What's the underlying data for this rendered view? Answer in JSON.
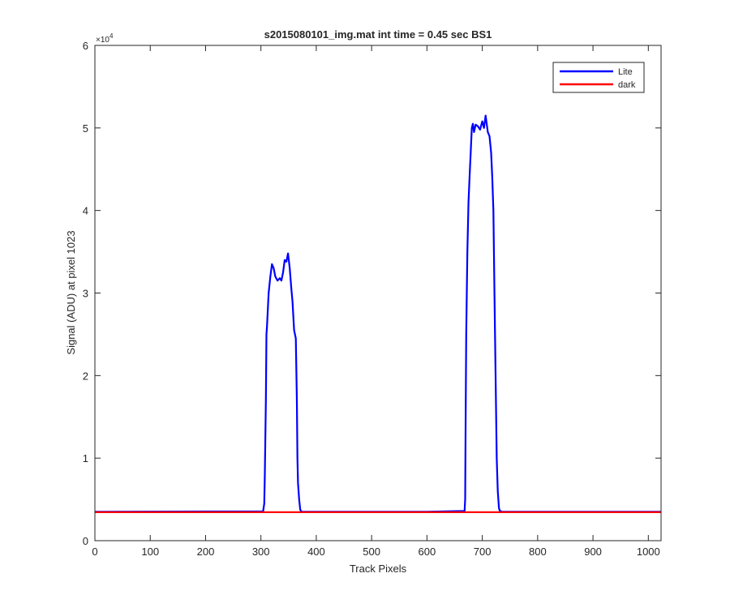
{
  "chart_data": {
    "type": "line",
    "title": "s2015080101_img.mat int time = 0.45 sec   BS1",
    "xlabel": "Track Pixels",
    "ylabel": "Signal (ADU) at pixel 1023",
    "xlim": [
      0,
      1023
    ],
    "ylim": [
      0,
      60000
    ],
    "x_ticks": [
      0,
      100,
      200,
      300,
      400,
      500,
      600,
      700,
      800,
      900,
      1000
    ],
    "y_ticks": [
      0,
      1,
      2,
      3,
      4,
      5,
      6
    ],
    "y_exponent_label": "×10",
    "y_exponent_power": "4",
    "y_multiplier": 10000,
    "grid": false,
    "legend_position": "top-right",
    "series": [
      {
        "name": "Lite",
        "color": "#0000ff",
        "x": [
          0,
          304,
          306,
          307,
          309,
          310,
          311,
          314,
          317,
          320,
          323,
          326,
          330,
          334,
          337,
          340,
          343,
          346,
          349,
          352,
          355,
          357,
          360,
          363,
          365,
          366,
          367,
          369,
          371,
          372,
          373,
          375,
          400,
          500,
          600,
          668,
          669,
          670,
          671,
          673,
          675,
          677,
          679,
          681,
          683,
          685,
          688,
          692,
          696,
          700,
          703,
          706,
          710,
          713,
          716,
          718,
          720,
          722,
          724,
          726,
          728,
          730,
          731,
          732,
          734,
          736,
          760,
          900,
          1023
        ],
        "y": [
          3500,
          3550,
          4500,
          8000,
          17000,
          25000,
          26000,
          30000,
          32000,
          33500,
          33000,
          32000,
          31500,
          31800,
          31500,
          32500,
          34000,
          33800,
          34800,
          33000,
          30500,
          29000,
          25500,
          24500,
          17000,
          10000,
          7000,
          5000,
          3800,
          3600,
          3550,
          3500,
          3500,
          3500,
          3500,
          3600,
          5000,
          15000,
          25000,
          35000,
          41000,
          44000,
          47000,
          50000,
          50500,
          49500,
          50400,
          50200,
          49800,
          50800,
          50000,
          51500,
          49500,
          49000,
          47000,
          44000,
          40000,
          30000,
          20000,
          10000,
          6000,
          4000,
          3700,
          3600,
          3550,
          3500,
          3500,
          3500,
          3500
        ]
      },
      {
        "name": "dark",
        "color": "#ff0000",
        "x": [
          0,
          1023
        ],
        "y": [
          3450,
          3450
        ]
      }
    ]
  }
}
